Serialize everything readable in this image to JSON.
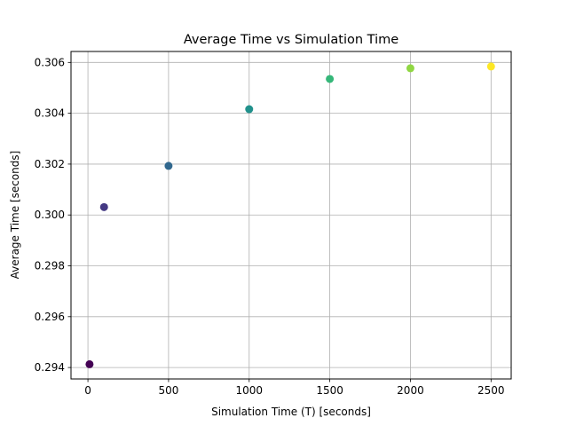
{
  "chart_data": {
    "type": "scatter",
    "title": "Average Time vs Simulation Time",
    "xlabel": "Simulation Time (T) [seconds]",
    "ylabel": "Average Time [seconds]",
    "xlim": [
      -105,
      2625
    ],
    "ylim": [
      0.29355,
      0.30643
    ],
    "x_ticks": [
      0,
      500,
      1000,
      1500,
      2000,
      2500
    ],
    "y_ticks": [
      0.294,
      0.296,
      0.298,
      0.3,
      0.302,
      0.304,
      0.306
    ],
    "y_tick_labels": [
      "0.294",
      "0.296",
      "0.298",
      "0.300",
      "0.302",
      "0.304",
      "0.306"
    ],
    "grid": true,
    "colormap": "viridis",
    "points": [
      {
        "x": 10,
        "y": 0.29413,
        "color": "#440154"
      },
      {
        "x": 100,
        "y": 0.30031,
        "color": "#443983"
      },
      {
        "x": 500,
        "y": 0.30193,
        "color": "#31688e"
      },
      {
        "x": 1000,
        "y": 0.30416,
        "color": "#21918c"
      },
      {
        "x": 1500,
        "y": 0.30535,
        "color": "#35b779"
      },
      {
        "x": 2000,
        "y": 0.30577,
        "color": "#90d743"
      },
      {
        "x": 2500,
        "y": 0.30584,
        "color": "#fde725"
      }
    ]
  }
}
